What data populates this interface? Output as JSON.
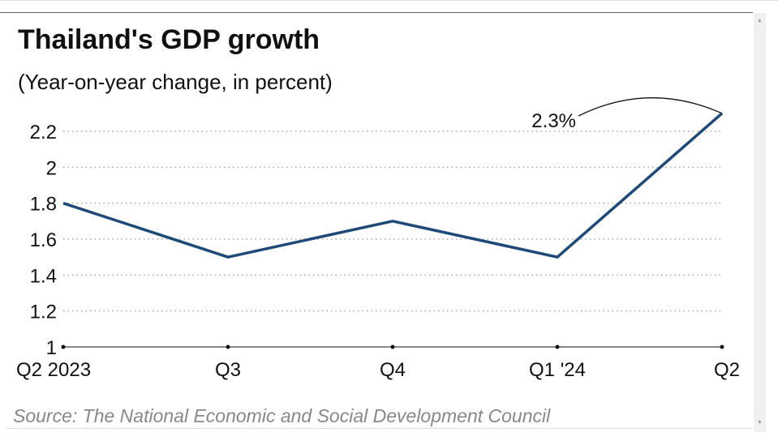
{
  "title": "Thailand's GDP growth",
  "subtitle": "(Year-on-year change, in percent)",
  "source": "Source: The National Economic and Social Development Council",
  "chart_data": {
    "type": "line",
    "title": "Thailand's GDP growth",
    "subtitle": "(Year-on-year change, in percent)",
    "categories": [
      "Q2 2023",
      "Q3",
      "Q4",
      "Q1 '24",
      "Q2"
    ],
    "series": [
      {
        "values": [
          1.8,
          1.5,
          1.7,
          1.5,
          2.3
        ],
        "color": "#1f4a78"
      }
    ],
    "ylim": [
      1,
      2.3
    ],
    "yticks": [
      1,
      1.2,
      1.4,
      1.6,
      1.8,
      2,
      2.2
    ],
    "ytick_labels": [
      "1",
      "1.2",
      "1.4",
      "1.6",
      "1.8",
      "2",
      "2.2"
    ],
    "grid": "horizontal dotted",
    "annotations": [
      {
        "text": "2.3%",
        "category": "Q2",
        "value": 2.3
      }
    ]
  }
}
